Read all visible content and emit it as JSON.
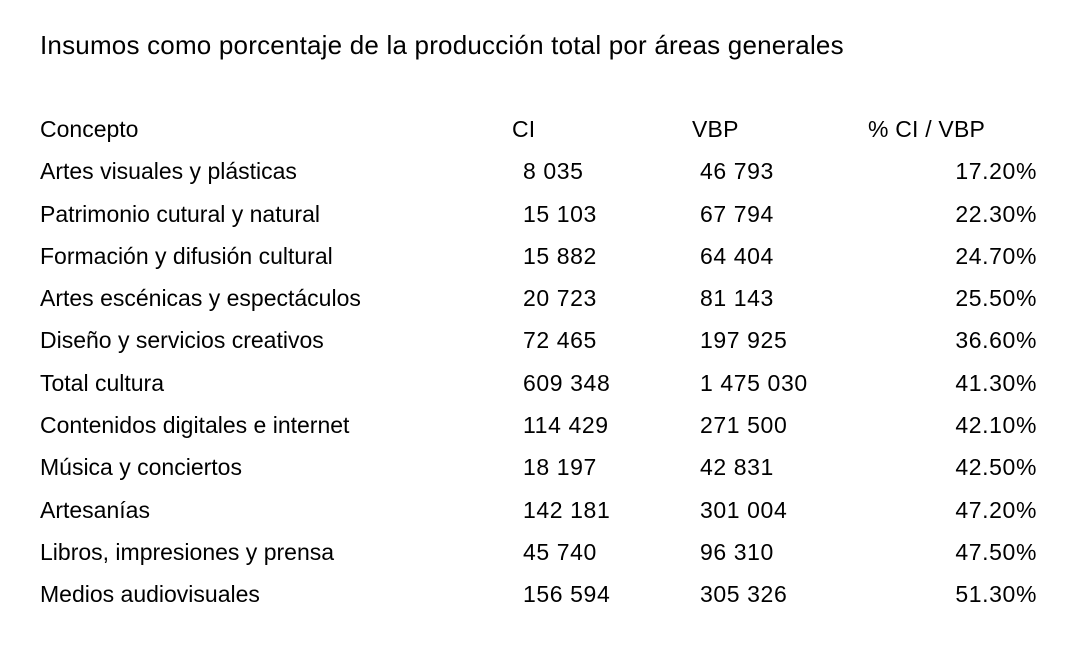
{
  "title": "Insumos como porcentaje de la producción total por áreas generales",
  "colors": {
    "background": "#ffffff",
    "text": "#000000"
  },
  "table": {
    "columns": [
      "Concepto",
      "CI",
      "VBP",
      "% CI / VBP"
    ],
    "rows": [
      {
        "concepto": "Artes visuales y plásticas",
        "ci": "8 035",
        "vbp": "46 793",
        "pct": "17.20%"
      },
      {
        "concepto": "Patrimonio cutural y natural",
        "ci": "15 103",
        "vbp": "67 794",
        "pct": "22.30%"
      },
      {
        "concepto": "Formación y difusión cultural",
        "ci": "15 882",
        "vbp": "64 404",
        "pct": "24.70%"
      },
      {
        "concepto": "Artes escénicas y espectáculos",
        "ci": "20 723",
        "vbp": "81 143",
        "pct": "25.50%"
      },
      {
        "concepto": "Diseño y servicios creativos",
        "ci": "72 465",
        "vbp": "197 925",
        "pct": "36.60%"
      },
      {
        "concepto": "Total cultura",
        "ci": "609 348",
        "vbp": "1 475 030",
        "pct": "41.30%"
      },
      {
        "concepto": "Contenidos digitales e internet",
        "ci": "114 429",
        "vbp": "271 500",
        "pct": "42.10%"
      },
      {
        "concepto": "Música y conciertos",
        "ci": "18 197",
        "vbp": "42 831",
        "pct": "42.50%"
      },
      {
        "concepto": "Artesanías",
        "ci": "142 181",
        "vbp": "301 004",
        "pct": "47.20%"
      },
      {
        "concepto": "Libros, impresiones y prensa",
        "ci": "45 740",
        "vbp": "96 310",
        "pct": "47.50%"
      },
      {
        "concepto": "Medios audiovisuales",
        "ci": "156 594",
        "vbp": "305 326",
        "pct": "51.30%"
      }
    ]
  },
  "chart_data": {
    "type": "table",
    "title": "Insumos como porcentaje de la producción total por áreas generales",
    "columns": [
      "Concepto",
      "CI",
      "VBP",
      "% CI / VBP"
    ],
    "rows": [
      [
        "Artes visuales y plásticas",
        8035,
        46793,
        17.2
      ],
      [
        "Patrimonio cutural y natural",
        15103,
        67794,
        22.3
      ],
      [
        "Formación y difusión cultural",
        15882,
        64404,
        24.7
      ],
      [
        "Artes escénicas y espectáculos",
        20723,
        81143,
        25.5
      ],
      [
        "Diseño y servicios creativos",
        72465,
        197925,
        36.6
      ],
      [
        "Total cultura",
        609348,
        1475030,
        41.3
      ],
      [
        "Contenidos digitales e internet",
        114429,
        271500,
        42.1
      ],
      [
        "Música y conciertos",
        18197,
        42831,
        42.5
      ],
      [
        "Artesanías",
        142181,
        301004,
        47.2
      ],
      [
        "Libros, impresiones y prensa",
        45740,
        96310,
        47.5
      ],
      [
        "Medios audiovisuales",
        156594,
        305326,
        51.3
      ]
    ],
    "notes": "Percent column formatted with two decimals and % sign; CI and VBP use space as thousands separator; sorted ascending by % CI / VBP"
  }
}
